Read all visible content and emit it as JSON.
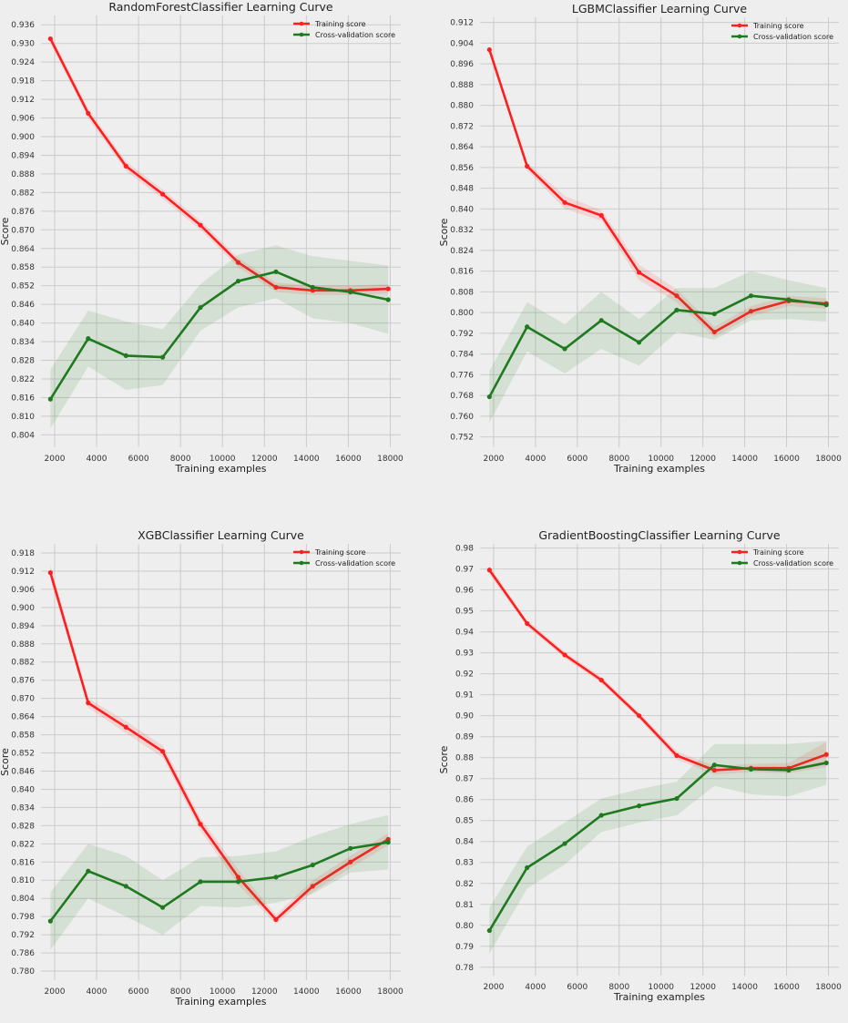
{
  "figure": {
    "background": "#eeeeee",
    "plot_background": "#eeeeee",
    "grid_color": "#cbcbcb"
  },
  "chart_data": [
    {
      "type": "line",
      "title": "RandomForestClassifier Learning Curve",
      "xlabel": "Training examples",
      "ylabel": "Score",
      "x_ticks": [
        2000,
        4000,
        6000,
        8000,
        10000,
        12000,
        14000,
        16000,
        18000
      ],
      "x_tick_labels": [
        "2000",
        "4000",
        "6000",
        "8000",
        "10000",
        "12000",
        "14000",
        "16000",
        "18000"
      ],
      "y_ticks": [
        0.804,
        0.81,
        0.816,
        0.822,
        0.828,
        0.834,
        0.84,
        0.846,
        0.852,
        0.858,
        0.864,
        0.87,
        0.876,
        0.882,
        0.888,
        0.894,
        0.9,
        0.906,
        0.912,
        0.918,
        0.924,
        0.93,
        0.936
      ],
      "y_tick_labels": [
        "0.804",
        "0.810",
        "0.816",
        "0.822",
        "0.828",
        "0.834",
        "0.840",
        "0.846",
        "0.852",
        "0.858",
        "0.864",
        "0.870",
        "0.876",
        "0.882",
        "0.888",
        "0.894",
        "0.900",
        "0.906",
        "0.912",
        "0.918",
        "0.924",
        "0.930",
        "0.936"
      ],
      "xlim": [
        1350,
        18500
      ],
      "ylim": [
        0.8,
        0.939
      ],
      "grid": true,
      "legend": "top-right",
      "x": [
        1800,
        3600,
        5400,
        7150,
        8950,
        10750,
        12550,
        14300,
        16100,
        17900
      ],
      "series": [
        {
          "name": "Training score",
          "color": "#ff2121",
          "values": [
            0.9315,
            0.9075,
            0.8905,
            0.8815,
            0.8715,
            0.8595,
            0.8515,
            0.8505,
            0.8505,
            0.851
          ],
          "band": [
            0.0015,
            0.0015,
            0.0015,
            0.0015,
            0.0015,
            0.0015,
            0.0015,
            0.0015,
            0.0015,
            0.0015
          ]
        },
        {
          "name": "Cross-validation score",
          "color": "#1f7a1f",
          "values": [
            0.8155,
            0.835,
            0.8295,
            0.829,
            0.845,
            0.8535,
            0.8565,
            0.8515,
            0.85,
            0.8475
          ],
          "band": [
            0.0095,
            0.009,
            0.011,
            0.009,
            0.0075,
            0.0085,
            0.0085,
            0.01,
            0.01,
            0.011
          ]
        }
      ]
    },
    {
      "type": "line",
      "title": "LGBMClassifier Learning Curve",
      "xlabel": "Training examples",
      "ylabel": "Score",
      "x_ticks": [
        2000,
        4000,
        6000,
        8000,
        10000,
        12000,
        14000,
        16000,
        18000
      ],
      "x_tick_labels": [
        "2000",
        "4000",
        "6000",
        "8000",
        "10000",
        "12000",
        "14000",
        "16000",
        "18000"
      ],
      "y_ticks": [
        0.752,
        0.76,
        0.768,
        0.776,
        0.784,
        0.792,
        0.8,
        0.808,
        0.816,
        0.824,
        0.832,
        0.84,
        0.848,
        0.856,
        0.864,
        0.872,
        0.88,
        0.888,
        0.896,
        0.904,
        0.912
      ],
      "y_tick_labels": [
        "0.752",
        "0.760",
        "0.768",
        "0.776",
        "0.784",
        "0.792",
        "0.800",
        "0.808",
        "0.816",
        "0.824",
        "0.832",
        "0.840",
        "0.848",
        "0.856",
        "0.864",
        "0.872",
        "0.880",
        "0.888",
        "0.896",
        "0.904",
        "0.912"
      ],
      "xlim": [
        1350,
        18500
      ],
      "ylim": [
        0.748,
        0.914
      ],
      "grid": true,
      "legend": "top-right",
      "x": [
        1800,
        3600,
        5400,
        7150,
        8950,
        10750,
        12550,
        14300,
        16100,
        17900
      ],
      "series": [
        {
          "name": "Training score",
          "color": "#ff2121",
          "values": [
            0.9015,
            0.8565,
            0.8425,
            0.8375,
            0.8155,
            0.8065,
            0.7925,
            0.8005,
            0.8045,
            0.8035
          ],
          "band": [
            0.0015,
            0.0015,
            0.0025,
            0.002,
            0.003,
            0.0025,
            0.002,
            0.002,
            0.002,
            0.002
          ]
        },
        {
          "name": "Cross-validation score",
          "color": "#1f7a1f",
          "values": [
            0.7675,
            0.7945,
            0.786,
            0.797,
            0.7885,
            0.801,
            0.7995,
            0.8065,
            0.805,
            0.803
          ],
          "band": [
            0.01,
            0.0095,
            0.0095,
            0.011,
            0.009,
            0.0085,
            0.01,
            0.0095,
            0.0075,
            0.0065
          ]
        }
      ]
    },
    {
      "type": "line",
      "title": "XGBClassifier Learning Curve",
      "xlabel": "Training examples",
      "ylabel": "Score",
      "x_ticks": [
        2000,
        4000,
        6000,
        8000,
        10000,
        12000,
        14000,
        16000,
        18000
      ],
      "x_tick_labels": [
        "2000",
        "4000",
        "6000",
        "8000",
        "10000",
        "12000",
        "14000",
        "16000",
        "18000"
      ],
      "y_ticks": [
        0.78,
        0.786,
        0.792,
        0.798,
        0.804,
        0.81,
        0.816,
        0.822,
        0.828,
        0.834,
        0.84,
        0.846,
        0.852,
        0.858,
        0.864,
        0.87,
        0.876,
        0.882,
        0.888,
        0.894,
        0.9,
        0.906,
        0.912,
        0.918
      ],
      "y_tick_labels": [
        "0.780",
        "0.786",
        "0.792",
        "0.798",
        "0.804",
        "0.810",
        "0.816",
        "0.822",
        "0.828",
        "0.834",
        "0.840",
        "0.846",
        "0.852",
        "0.858",
        "0.864",
        "0.870",
        "0.876",
        "0.882",
        "0.888",
        "0.894",
        "0.900",
        "0.906",
        "0.912",
        "0.918"
      ],
      "xlim": [
        1350,
        18500
      ],
      "ylim": [
        0.777,
        0.921
      ],
      "grid": true,
      "legend": "top-right",
      "x": [
        1800,
        3600,
        5400,
        7150,
        8950,
        10750,
        12550,
        14300,
        16100,
        17900
      ],
      "series": [
        {
          "name": "Training score",
          "color": "#ff2121",
          "values": [
            0.9115,
            0.8685,
            0.8605,
            0.8525,
            0.8285,
            0.811,
            0.797,
            0.808,
            0.816,
            0.8235
          ],
          "band": [
            0.0025,
            0.0015,
            0.002,
            0.002,
            0.002,
            0.0025,
            0.0015,
            0.002,
            0.002,
            0.002
          ]
        },
        {
          "name": "Cross-validation score",
          "color": "#1f7a1f",
          "values": [
            0.7965,
            0.813,
            0.808,
            0.801,
            0.8095,
            0.8095,
            0.811,
            0.815,
            0.8205,
            0.8225
          ],
          "band": [
            0.0095,
            0.009,
            0.01,
            0.009,
            0.008,
            0.0085,
            0.0085,
            0.0095,
            0.008,
            0.009
          ]
        }
      ]
    },
    {
      "type": "line",
      "title": "GradientBoostingClassifier Learning Curve",
      "xlabel": "Training examples",
      "ylabel": "Score",
      "x_ticks": [
        2000,
        4000,
        6000,
        8000,
        10000,
        12000,
        14000,
        16000,
        18000
      ],
      "x_tick_labels": [
        "2000",
        "4000",
        "6000",
        "8000",
        "10000",
        "12000",
        "14000",
        "16000",
        "18000"
      ],
      "y_ticks": [
        0.78,
        0.79,
        0.8,
        0.81,
        0.82,
        0.83,
        0.84,
        0.85,
        0.86,
        0.87,
        0.88,
        0.89,
        0.9,
        0.91,
        0.92,
        0.93,
        0.94,
        0.95,
        0.96,
        0.97,
        0.98
      ],
      "y_tick_labels": [
        "0.78",
        "0.79",
        "0.80",
        "0.81",
        "0.82",
        "0.83",
        "0.84",
        "0.85",
        "0.86",
        "0.87",
        "0.88",
        "0.89",
        "0.90",
        "0.91",
        "0.92",
        "0.93",
        "0.94",
        "0.95",
        "0.96",
        "0.97",
        "0.98"
      ],
      "xlim": [
        1350,
        18500
      ],
      "ylim": [
        0.776,
        0.982
      ],
      "grid": true,
      "legend": "top-right",
      "x": [
        1800,
        3600,
        5400,
        7150,
        8950,
        10750,
        12550,
        14300,
        16100,
        17900
      ],
      "series": [
        {
          "name": "Training score",
          "color": "#ff2121",
          "values": [
            0.9695,
            0.944,
            0.929,
            0.917,
            0.9,
            0.881,
            0.874,
            0.875,
            0.875,
            0.8815
          ],
          "band": [
            0.002,
            0.0015,
            0.0015,
            0.0015,
            0.0015,
            0.002,
            0.002,
            0.002,
            0.0025,
            0.006
          ]
        },
        {
          "name": "Cross-validation score",
          "color": "#1f7a1f",
          "values": [
            0.7975,
            0.8275,
            0.839,
            0.8525,
            0.857,
            0.8605,
            0.8765,
            0.8745,
            0.874,
            0.8775
          ],
          "band": [
            0.011,
            0.01,
            0.01,
            0.008,
            0.008,
            0.008,
            0.01,
            0.012,
            0.0125,
            0.0105
          ]
        }
      ]
    }
  ]
}
